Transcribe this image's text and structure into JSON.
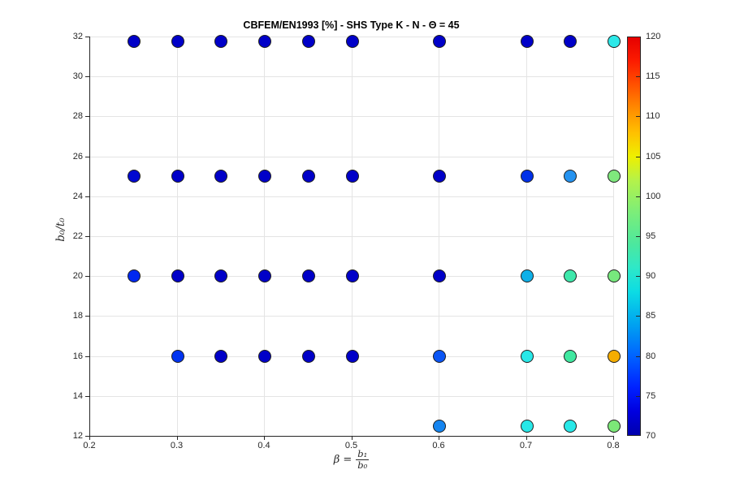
{
  "chart_data": {
    "type": "scatter",
    "title": "CBFEM/EN1993 [%] - SHS Type K - N - Θ = 45",
    "xlabel": "β = b₁/b₀",
    "xlabel_parts": {
      "prefix": "β =",
      "numerator": "b₁",
      "denominator": "b₀"
    },
    "ylabel": "b₀/t₀",
    "xlim": [
      0.2,
      0.8
    ],
    "ylim": [
      12,
      32
    ],
    "x_ticks": [
      0.2,
      0.3,
      0.4,
      0.5,
      0.6,
      0.7,
      0.8
    ],
    "y_ticks": [
      12,
      14,
      16,
      18,
      20,
      22,
      24,
      26,
      28,
      30,
      32
    ],
    "grid": true,
    "marker_edge_color": "#1f1f1f",
    "colorbar": {
      "min": 70,
      "max": 120,
      "ticks": [
        70,
        75,
        80,
        85,
        90,
        95,
        100,
        105,
        110,
        115,
        120
      ],
      "gradient_stops": [
        {
          "value": 70,
          "color": "#0000ad"
        },
        {
          "value": 73,
          "color": "#0000e0"
        },
        {
          "value": 76,
          "color": "#0022ff"
        },
        {
          "value": 80,
          "color": "#0064ff"
        },
        {
          "value": 84,
          "color": "#00a4f0"
        },
        {
          "value": 88,
          "color": "#0cdce4"
        },
        {
          "value": 91,
          "color": "#2ee8c8"
        },
        {
          "value": 94,
          "color": "#4ce89e"
        },
        {
          "value": 98,
          "color": "#7cee79"
        },
        {
          "value": 102,
          "color": "#b4f24a"
        },
        {
          "value": 105,
          "color": "#eef000"
        },
        {
          "value": 108,
          "color": "#ffc000"
        },
        {
          "value": 111,
          "color": "#ff8c00"
        },
        {
          "value": 114,
          "color": "#ff5200"
        },
        {
          "value": 117,
          "color": "#fc1c00"
        },
        {
          "value": 120,
          "color": "#e60000"
        }
      ]
    },
    "points": [
      {
        "x": 0.25,
        "y": 31.75,
        "value": 72,
        "color": "#0000c8"
      },
      {
        "x": 0.3,
        "y": 31.75,
        "value": 72,
        "color": "#0000c8"
      },
      {
        "x": 0.35,
        "y": 31.75,
        "value": 72,
        "color": "#0000c8"
      },
      {
        "x": 0.4,
        "y": 31.75,
        "value": 72,
        "color": "#0000c8"
      },
      {
        "x": 0.45,
        "y": 31.75,
        "value": 72,
        "color": "#0000c8"
      },
      {
        "x": 0.5,
        "y": 31.75,
        "value": 72,
        "color": "#0000c8"
      },
      {
        "x": 0.6,
        "y": 31.75,
        "value": 72,
        "color": "#0000c8"
      },
      {
        "x": 0.7,
        "y": 31.75,
        "value": 72,
        "color": "#0000c8"
      },
      {
        "x": 0.75,
        "y": 31.75,
        "value": 72,
        "color": "#0000c8"
      },
      {
        "x": 0.8,
        "y": 31.75,
        "value": 90,
        "color": "#2de8e8"
      },
      {
        "x": 0.25,
        "y": 25,
        "value": 73,
        "color": "#0008d0"
      },
      {
        "x": 0.3,
        "y": 25,
        "value": 72,
        "color": "#0000c8"
      },
      {
        "x": 0.35,
        "y": 25,
        "value": 72,
        "color": "#0000c8"
      },
      {
        "x": 0.4,
        "y": 25,
        "value": 72,
        "color": "#0000c8"
      },
      {
        "x": 0.45,
        "y": 25,
        "value": 72,
        "color": "#0000c8"
      },
      {
        "x": 0.5,
        "y": 25,
        "value": 72,
        "color": "#0000c8"
      },
      {
        "x": 0.6,
        "y": 25,
        "value": 72,
        "color": "#0000c8"
      },
      {
        "x": 0.7,
        "y": 25,
        "value": 76,
        "color": "#0030e8"
      },
      {
        "x": 0.75,
        "y": 25,
        "value": 84,
        "color": "#2593f0"
      },
      {
        "x": 0.8,
        "y": 25,
        "value": 100,
        "color": "#7fe87d"
      },
      {
        "x": 0.25,
        "y": 20,
        "value": 75,
        "color": "#0028f0"
      },
      {
        "x": 0.3,
        "y": 20,
        "value": 72,
        "color": "#0000c8"
      },
      {
        "x": 0.35,
        "y": 20,
        "value": 72,
        "color": "#0000c8"
      },
      {
        "x": 0.4,
        "y": 20,
        "value": 72,
        "color": "#0000c8"
      },
      {
        "x": 0.45,
        "y": 20,
        "value": 72,
        "color": "#0000c8"
      },
      {
        "x": 0.5,
        "y": 20,
        "value": 72,
        "color": "#0000c8"
      },
      {
        "x": 0.6,
        "y": 20,
        "value": 72,
        "color": "#0000c8"
      },
      {
        "x": 0.7,
        "y": 20,
        "value": 87,
        "color": "#0fb0e8"
      },
      {
        "x": 0.75,
        "y": 20,
        "value": 94,
        "color": "#3ee8ab"
      },
      {
        "x": 0.8,
        "y": 20,
        "value": 99,
        "color": "#77e87d"
      },
      {
        "x": 0.3,
        "y": 16,
        "value": 76,
        "color": "#0033f0"
      },
      {
        "x": 0.35,
        "y": 16,
        "value": 72,
        "color": "#0000c8"
      },
      {
        "x": 0.4,
        "y": 16,
        "value": 72,
        "color": "#0000c8"
      },
      {
        "x": 0.45,
        "y": 16,
        "value": 72,
        "color": "#0000c8"
      },
      {
        "x": 0.5,
        "y": 16,
        "value": 72,
        "color": "#0000c8"
      },
      {
        "x": 0.6,
        "y": 16,
        "value": 79,
        "color": "#0a55f5"
      },
      {
        "x": 0.7,
        "y": 16,
        "value": 90,
        "color": "#28e8e8"
      },
      {
        "x": 0.75,
        "y": 16,
        "value": 95,
        "color": "#40e8a0"
      },
      {
        "x": 0.8,
        "y": 16,
        "value": 108,
        "color": "#f5ad00"
      },
      {
        "x": 0.6,
        "y": 12.5,
        "value": 84,
        "color": "#1585f0"
      },
      {
        "x": 0.7,
        "y": 12.5,
        "value": 90,
        "color": "#28e8e8"
      },
      {
        "x": 0.75,
        "y": 12.5,
        "value": 90,
        "color": "#28e8e8"
      },
      {
        "x": 0.8,
        "y": 12.5,
        "value": 100,
        "color": "#7ce878"
      }
    ]
  }
}
